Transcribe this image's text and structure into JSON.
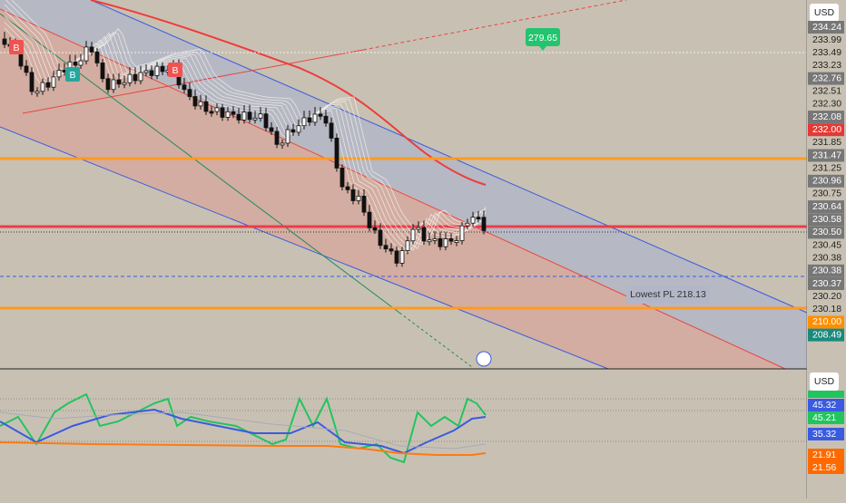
{
  "price_axis": {
    "currency": "USD",
    "labels": [
      "234.24",
      "233.99",
      "233.49",
      "233.23",
      "232.76",
      "232.51",
      "232.30",
      "232.08",
      "232.00",
      "231.85",
      "231.47",
      "231.25",
      "230.96",
      "230.75",
      "230.64",
      "230.58",
      "230.50",
      "230.45",
      "230.38",
      "230.38",
      "230.37",
      "230.20",
      "230.18",
      "210.00",
      "208.49"
    ]
  },
  "indicator_axis": {
    "currency": "USD",
    "labels": [
      "45.32",
      "45.21",
      "35.32",
      "21.91",
      "21.56"
    ]
  },
  "chart": {
    "signals": [
      "B",
      "B",
      "B"
    ],
    "target_badge": "279.65",
    "lowest_label": "Lowest PL 218.13"
  }
}
